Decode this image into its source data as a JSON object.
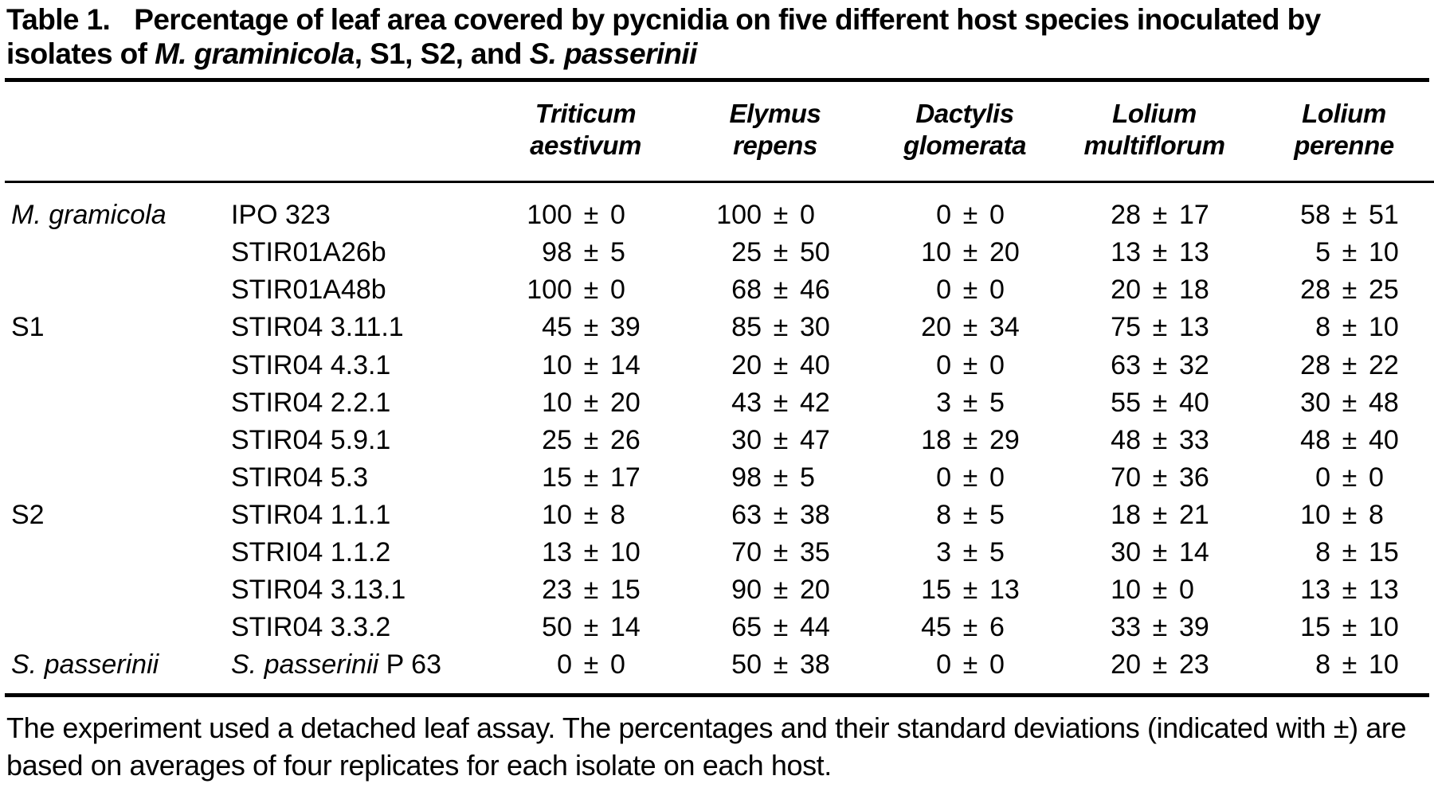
{
  "title": {
    "label": "Table 1.",
    "caption_segments": [
      {
        "text": "Percentage of leaf area covered by pycnidia on five different host species inoculated by isolates of ",
        "italic": false
      },
      {
        "text": "M. graminicola",
        "italic": true
      },
      {
        "text": ", S1, S2, and ",
        "italic": false
      },
      {
        "text": "S. passerinii",
        "italic": true
      }
    ]
  },
  "table": {
    "host_columns": [
      {
        "genus": "Triticum",
        "species": "aestivum"
      },
      {
        "genus": "Elymus",
        "species": "repens"
      },
      {
        "genus": "Dactylis",
        "species": "glomerata"
      },
      {
        "genus": "Lolium",
        "species": "multiflorum"
      },
      {
        "genus": "Lolium",
        "species": "perenne"
      }
    ],
    "plus_minus": "±",
    "rows": [
      {
        "group": {
          "text": "M. gramicola",
          "italic": true
        },
        "isolate": [
          {
            "text": "IPO 323",
            "italic": false
          }
        ],
        "values": [
          {
            "mean": 100,
            "sd": 0
          },
          {
            "mean": 100,
            "sd": 0
          },
          {
            "mean": 0,
            "sd": 0
          },
          {
            "mean": 28,
            "sd": 17
          },
          {
            "mean": 58,
            "sd": 51
          }
        ]
      },
      {
        "group": {
          "text": "",
          "italic": false
        },
        "isolate": [
          {
            "text": "STIR01A26b",
            "italic": false
          }
        ],
        "values": [
          {
            "mean": 98,
            "sd": 5
          },
          {
            "mean": 25,
            "sd": 50
          },
          {
            "mean": 10,
            "sd": 20
          },
          {
            "mean": 13,
            "sd": 13
          },
          {
            "mean": 5,
            "sd": 10
          }
        ]
      },
      {
        "group": {
          "text": "",
          "italic": false
        },
        "isolate": [
          {
            "text": "STIR01A48b",
            "italic": false
          }
        ],
        "values": [
          {
            "mean": 100,
            "sd": 0
          },
          {
            "mean": 68,
            "sd": 46
          },
          {
            "mean": 0,
            "sd": 0
          },
          {
            "mean": 20,
            "sd": 18
          },
          {
            "mean": 28,
            "sd": 25
          }
        ]
      },
      {
        "group": {
          "text": "S1",
          "italic": false
        },
        "isolate": [
          {
            "text": "STIR04 3.11.1",
            "italic": false
          }
        ],
        "values": [
          {
            "mean": 45,
            "sd": 39
          },
          {
            "mean": 85,
            "sd": 30
          },
          {
            "mean": 20,
            "sd": 34
          },
          {
            "mean": 75,
            "sd": 13
          },
          {
            "mean": 8,
            "sd": 10
          }
        ]
      },
      {
        "group": {
          "text": "",
          "italic": false
        },
        "isolate": [
          {
            "text": "STIR04 4.3.1",
            "italic": false
          }
        ],
        "values": [
          {
            "mean": 10,
            "sd": 14
          },
          {
            "mean": 20,
            "sd": 40
          },
          {
            "mean": 0,
            "sd": 0
          },
          {
            "mean": 63,
            "sd": 32
          },
          {
            "mean": 28,
            "sd": 22
          }
        ]
      },
      {
        "group": {
          "text": "",
          "italic": false
        },
        "isolate": [
          {
            "text": "STIR04 2.2.1",
            "italic": false
          }
        ],
        "values": [
          {
            "mean": 10,
            "sd": 20
          },
          {
            "mean": 43,
            "sd": 42
          },
          {
            "mean": 3,
            "sd": 5
          },
          {
            "mean": 55,
            "sd": 40
          },
          {
            "mean": 30,
            "sd": 48
          }
        ]
      },
      {
        "group": {
          "text": "",
          "italic": false
        },
        "isolate": [
          {
            "text": "STIR04 5.9.1",
            "italic": false
          }
        ],
        "values": [
          {
            "mean": 25,
            "sd": 26
          },
          {
            "mean": 30,
            "sd": 47
          },
          {
            "mean": 18,
            "sd": 29
          },
          {
            "mean": 48,
            "sd": 33
          },
          {
            "mean": 48,
            "sd": 40
          }
        ]
      },
      {
        "group": {
          "text": "",
          "italic": false
        },
        "isolate": [
          {
            "text": "STIR04 5.3",
            "italic": false
          }
        ],
        "values": [
          {
            "mean": 15,
            "sd": 17
          },
          {
            "mean": 98,
            "sd": 5
          },
          {
            "mean": 0,
            "sd": 0
          },
          {
            "mean": 70,
            "sd": 36
          },
          {
            "mean": 0,
            "sd": 0
          }
        ]
      },
      {
        "group": {
          "text": "S2",
          "italic": false
        },
        "isolate": [
          {
            "text": "STIR04 1.1.1",
            "italic": false
          }
        ],
        "values": [
          {
            "mean": 10,
            "sd": 8
          },
          {
            "mean": 63,
            "sd": 38
          },
          {
            "mean": 8,
            "sd": 5
          },
          {
            "mean": 18,
            "sd": 21
          },
          {
            "mean": 10,
            "sd": 8
          }
        ]
      },
      {
        "group": {
          "text": "",
          "italic": false
        },
        "isolate": [
          {
            "text": "STRI04 1.1.2",
            "italic": false
          }
        ],
        "values": [
          {
            "mean": 13,
            "sd": 10
          },
          {
            "mean": 70,
            "sd": 35
          },
          {
            "mean": 3,
            "sd": 5
          },
          {
            "mean": 30,
            "sd": 14
          },
          {
            "mean": 8,
            "sd": 15
          }
        ]
      },
      {
        "group": {
          "text": "",
          "italic": false
        },
        "isolate": [
          {
            "text": "STIR04 3.13.1",
            "italic": false
          }
        ],
        "values": [
          {
            "mean": 23,
            "sd": 15
          },
          {
            "mean": 90,
            "sd": 20
          },
          {
            "mean": 15,
            "sd": 13
          },
          {
            "mean": 10,
            "sd": 0
          },
          {
            "mean": 13,
            "sd": 13
          }
        ]
      },
      {
        "group": {
          "text": "",
          "italic": false
        },
        "isolate": [
          {
            "text": "STIR04 3.3.2",
            "italic": false
          }
        ],
        "values": [
          {
            "mean": 50,
            "sd": 14
          },
          {
            "mean": 65,
            "sd": 44
          },
          {
            "mean": 45,
            "sd": 6
          },
          {
            "mean": 33,
            "sd": 39
          },
          {
            "mean": 15,
            "sd": 10
          }
        ]
      },
      {
        "group": {
          "text": "S. passerinii",
          "italic": true
        },
        "isolate": [
          {
            "text": "S. passerinii",
            "italic": true
          },
          {
            "text": " P 63",
            "italic": false
          }
        ],
        "values": [
          {
            "mean": 0,
            "sd": 0
          },
          {
            "mean": 50,
            "sd": 38
          },
          {
            "mean": 0,
            "sd": 0
          },
          {
            "mean": 20,
            "sd": 23
          },
          {
            "mean": 8,
            "sd": 10
          }
        ]
      }
    ]
  },
  "footnote": "The experiment used a detached leaf assay. The percentages and their standard deviations (indicated with ±) are based on averages of four replicates for each isolate on each host."
}
